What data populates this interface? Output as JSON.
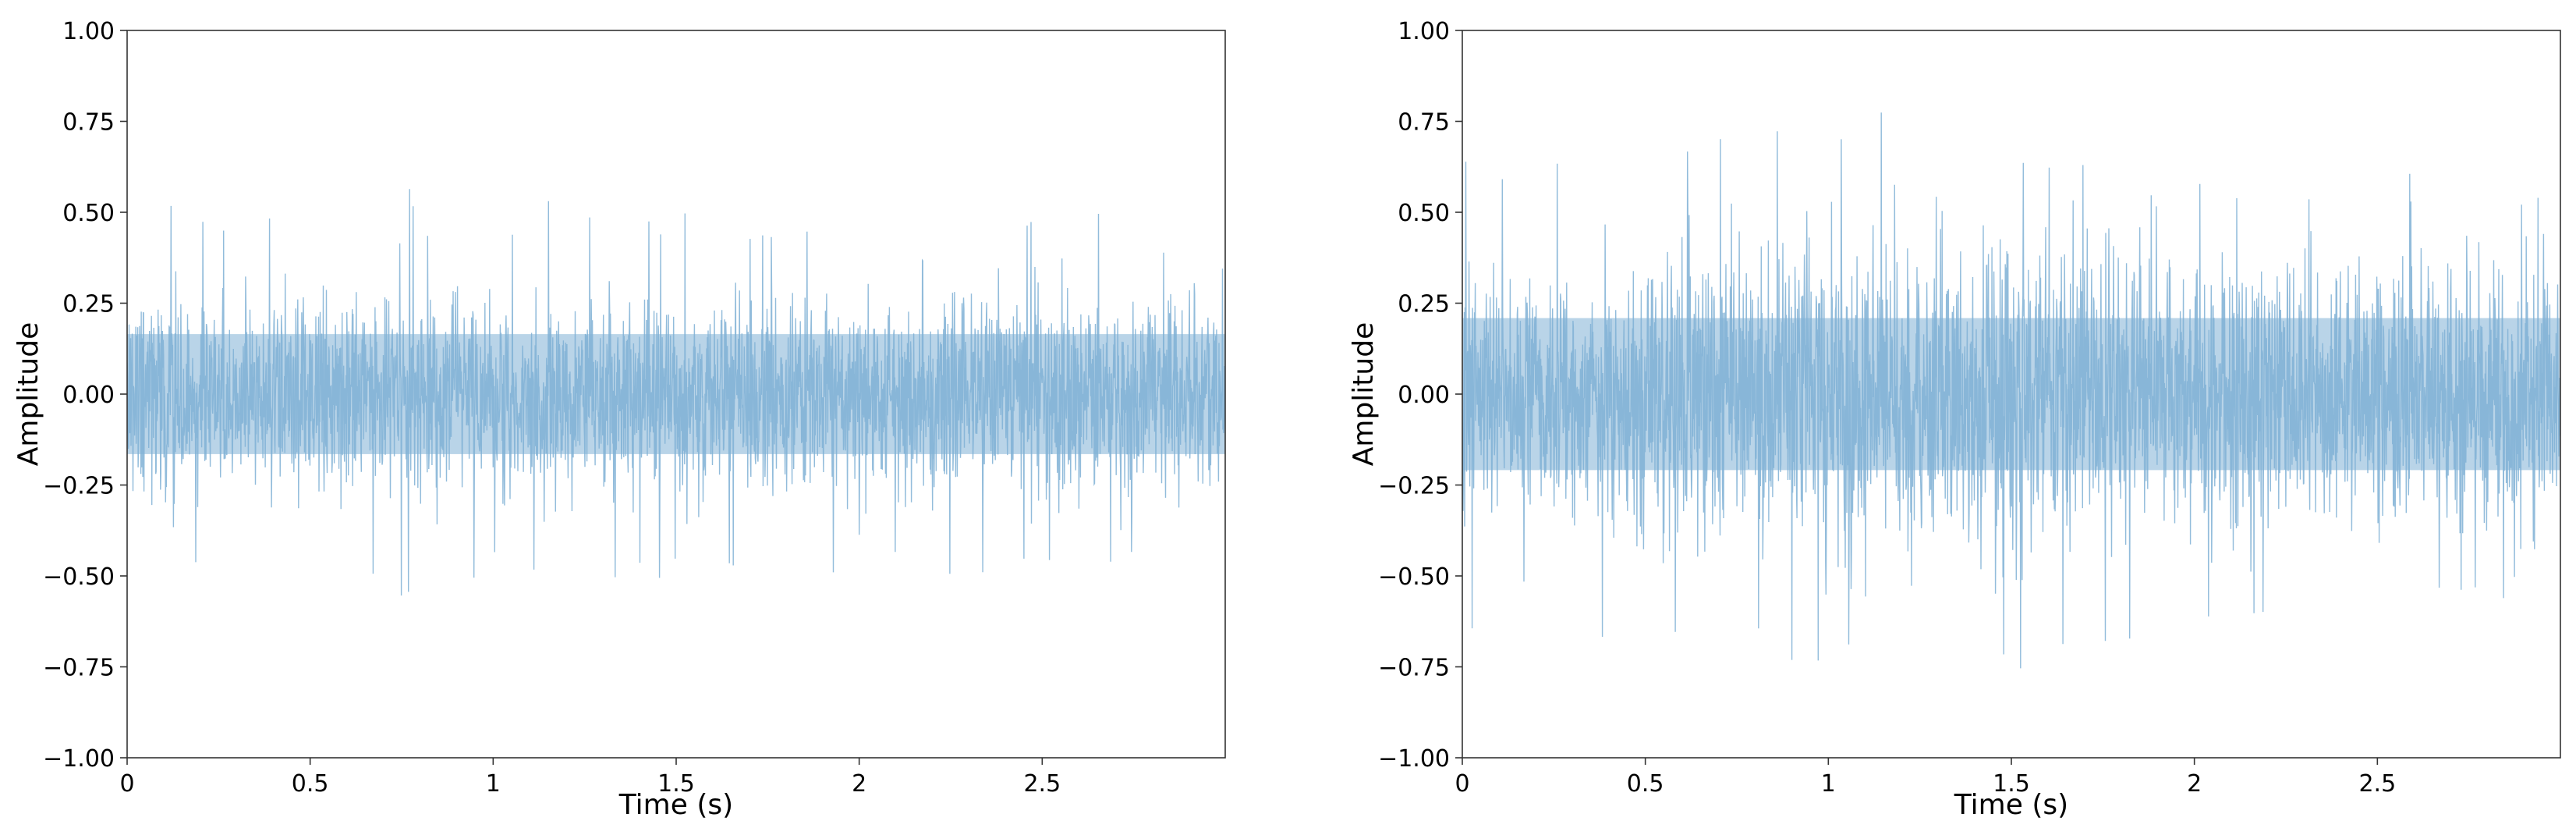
{
  "chart_data": [
    {
      "type": "line",
      "title": "",
      "xlabel": "Time (s)",
      "ylabel": "Amplitude",
      "xlim": [
        0,
        3.0
      ],
      "ylim": [
        -1.0,
        1.0
      ],
      "xticks": [
        0,
        0.5,
        1,
        1.5,
        2,
        2.5
      ],
      "xtick_labels": [
        "0",
        "0.5",
        "1",
        "1.5",
        "2",
        "2.5"
      ],
      "yticks": [
        -1.0,
        -0.75,
        -0.5,
        -0.25,
        0.0,
        0.25,
        0.5,
        0.75,
        1.0
      ],
      "ytick_labels": [
        "−1.00",
        "−0.75",
        "−0.50",
        "−0.25",
        "0.00",
        "0.25",
        "0.50",
        "0.75",
        "1.00"
      ],
      "grid": false,
      "legend": "none",
      "color": "#7fb0d5",
      "series": [
        {
          "signal": "noise waveform",
          "envelope_x": [
            0,
            0.25,
            0.5,
            0.75,
            1.0,
            1.25,
            1.5,
            1.75,
            2.0,
            2.25,
            2.5,
            2.75,
            3.0
          ],
          "typical_peak": [
            0.3,
            0.3,
            0.3,
            0.3,
            0.3,
            0.3,
            0.3,
            0.3,
            0.3,
            0.3,
            0.3,
            0.3,
            0.3
          ],
          "max_peak": [
            0.53,
            0.52,
            0.5,
            0.57,
            0.5,
            0.57,
            0.5,
            0.5,
            0.5,
            0.5,
            0.5,
            0.5,
            0.5
          ]
        }
      ]
    },
    {
      "type": "line",
      "title": "",
      "xlabel": "Time (s)",
      "ylabel": "Amplitude",
      "xlim": [
        0,
        3.0
      ],
      "ylim": [
        -1.0,
        1.0
      ],
      "xticks": [
        0,
        0.5,
        1,
        1.5,
        2,
        2.5
      ],
      "xtick_labels": [
        "0",
        "0.5",
        "1",
        "1.5",
        "2",
        "2.5"
      ],
      "yticks": [
        -1.0,
        -0.75,
        -0.5,
        -0.25,
        0.0,
        0.25,
        0.5,
        0.75,
        1.0
      ],
      "ytick_labels": [
        "−1.00",
        "−0.75",
        "−0.50",
        "−0.25",
        "0.00",
        "0.25",
        "0.50",
        "0.75",
        "1.00"
      ],
      "grid": false,
      "legend": "none",
      "color": "#7fb0d5",
      "series": [
        {
          "signal": "modulated noise waveform",
          "envelope_x": [
            0,
            0.25,
            0.5,
            0.75,
            1.0,
            1.25,
            1.5,
            1.75,
            2.0,
            2.25,
            2.5,
            2.75,
            3.0
          ],
          "typical_peak": [
            0.38,
            0.38,
            0.4,
            0.45,
            0.48,
            0.45,
            0.5,
            0.45,
            0.42,
            0.4,
            0.4,
            0.38,
            0.38
          ],
          "max_peak": [
            0.66,
            0.66,
            0.72,
            0.72,
            0.79,
            0.77,
            0.81,
            0.72,
            0.62,
            0.62,
            0.62,
            0.6,
            0.53
          ]
        }
      ]
    }
  ]
}
